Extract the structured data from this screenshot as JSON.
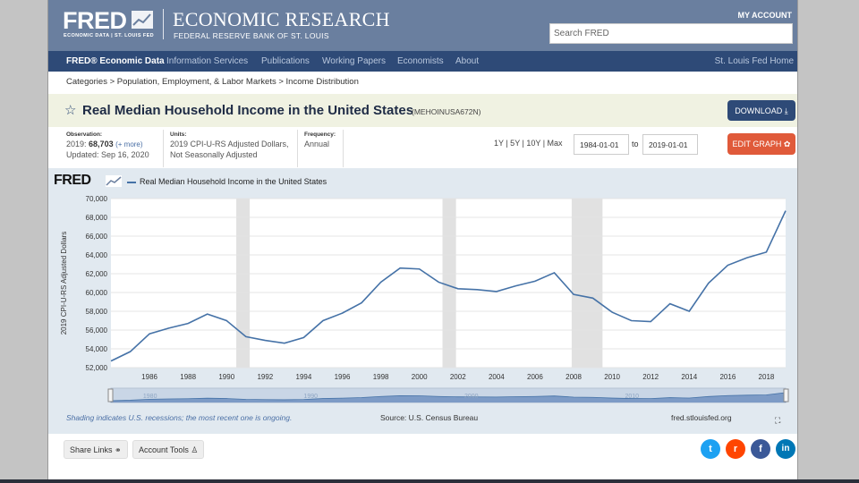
{
  "header": {
    "logo": "FRED",
    "logo_sub": "ECONOMIC DATA | ST. LOUIS FED",
    "title": "ECONOMIC RESEARCH",
    "subtitle": "FEDERAL RESERVE BANK OF ST. LOUIS",
    "my_account": "MY ACCOUNT",
    "search_placeholder": "Search FRED",
    "brand_color": "#6a7f9f"
  },
  "nav": {
    "items": [
      "FRED® Economic Data",
      "Information Services",
      "Publications",
      "Working Papers",
      "Economists",
      "About"
    ],
    "right": "St. Louis Fed Home"
  },
  "breadcrumb": "Categories > Population, Employment, & Labor Markets > Income Distribution",
  "series": {
    "title": "Real Median Household Income in the United States",
    "code": "(MEHOINUSA672N)",
    "download": "DOWNLOAD",
    "observation_label": "Observation:",
    "observation_year": "2019:",
    "observation_value": "68,703",
    "observation_more": "(+ more)",
    "updated": "Updated: Sep 16, 2020",
    "units_label": "Units:",
    "units_line1": "2019 CPI-U-RS Adjusted Dollars,",
    "units_line2": "Not Seasonally Adjusted",
    "frequency_label": "Frequency:",
    "frequency": "Annual",
    "ranges": "1Y | 5Y | 10Y | Max",
    "start_date": "1984-01-01",
    "to": "to",
    "end_date": "2019-01-01",
    "edit_graph": "EDIT GRAPH"
  },
  "graph": {
    "fred_logo": "FRED",
    "shading_note": "Shading indicates U.S. recessions; the most recent one is ongoing.",
    "source": "Source: U.S. Census Bureau",
    "url": "fred.stlouisfed.org"
  },
  "footer": {
    "share_links": "Share Links",
    "account_tools": "Account Tools"
  },
  "chart_data": {
    "type": "line",
    "title": "",
    "xlabel": "",
    "ylabel": "2019 CPI-U-RS Adjusted Dollars",
    "series": [
      {
        "name": "Real Median Household Income in the United States",
        "color": "#4572a7",
        "x": [
          1984,
          1985,
          1986,
          1987,
          1988,
          1989,
          1990,
          1991,
          1992,
          1993,
          1994,
          1995,
          1996,
          1997,
          1998,
          1999,
          2000,
          2001,
          2002,
          2003,
          2004,
          2005,
          2006,
          2007,
          2008,
          2009,
          2010,
          2011,
          2012,
          2013,
          2014,
          2015,
          2016,
          2017,
          2018,
          2019
        ],
        "values": [
          52700,
          53700,
          55600,
          56200,
          56700,
          57700,
          57000,
          55300,
          54900,
          54600,
          55200,
          57000,
          57800,
          58900,
          61100,
          62600,
          62500,
          61100,
          60400,
          60300,
          60100,
          60700,
          61200,
          62100,
          59800,
          59400,
          57900,
          57000,
          56900,
          58800,
          58000,
          61000,
          62900,
          63700,
          64300,
          68700
        ]
      }
    ],
    "x_ticks": [
      1986,
      1988,
      1990,
      1992,
      1994,
      1996,
      1998,
      2000,
      2002,
      2004,
      2006,
      2008,
      2010,
      2012,
      2014,
      2016,
      2018
    ],
    "y_ticks": [
      52000,
      54000,
      56000,
      58000,
      60000,
      62000,
      64000,
      66000,
      68000,
      70000
    ],
    "xlim": [
      1984,
      2019
    ],
    "ylim": [
      52000,
      70000
    ],
    "recessions": [
      [
        1990.5,
        1991.2
      ],
      [
        2001.2,
        2001.9
      ],
      [
        2007.9,
        2009.5
      ]
    ],
    "grid": true,
    "legend": "top-left",
    "navigator_labels": [
      "1980",
      "1990",
      "2000",
      "2010"
    ]
  }
}
